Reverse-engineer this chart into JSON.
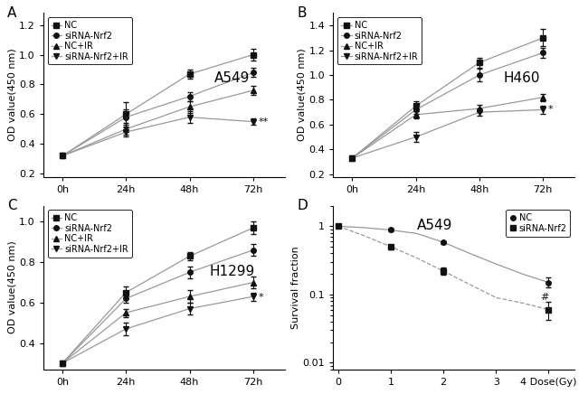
{
  "panel_A": {
    "title": "A549",
    "ylabel": "OD value(450 nm)",
    "xticks": [
      0,
      1,
      2,
      3
    ],
    "xticklabels": [
      "0h",
      "24h",
      "48h",
      "72h"
    ],
    "ylim": [
      0.18,
      1.28
    ],
    "yticks": [
      0.2,
      0.4,
      0.6,
      0.8,
      1.0,
      1.2
    ],
    "series": {
      "NC": {
        "y": [
          0.32,
          0.6,
          0.87,
          1.0
        ],
        "yerr": [
          0.01,
          0.08,
          0.03,
          0.04
        ],
        "marker": "s"
      },
      "siRNA-Nrf2": {
        "y": [
          0.32,
          0.58,
          0.72,
          0.88
        ],
        "yerr": [
          0.01,
          0.05,
          0.03,
          0.03
        ],
        "marker": "o"
      },
      "NC+IR": {
        "y": [
          0.32,
          0.5,
          0.65,
          0.76
        ],
        "yerr": [
          0.01,
          0.04,
          0.04,
          0.03
        ],
        "marker": "^"
      },
      "siRNA-Nrf2+IR": {
        "y": [
          0.32,
          0.48,
          0.58,
          0.55
        ],
        "yerr": [
          0.01,
          0.03,
          0.04,
          0.02
        ],
        "marker": "v"
      }
    },
    "annotation": "**",
    "ann_x": 3.08,
    "ann_y": 0.545
  },
  "panel_B": {
    "title": "H460",
    "ylabel": "OD value(450 nm)",
    "xticks": [
      0,
      1,
      2,
      3
    ],
    "xticklabels": [
      "0h",
      "24h",
      "48h",
      "72h"
    ],
    "ylim": [
      0.18,
      1.5
    ],
    "yticks": [
      0.2,
      0.4,
      0.6,
      0.8,
      1.0,
      1.2,
      1.4
    ],
    "series": {
      "NC": {
        "y": [
          0.33,
          0.75,
          1.1,
          1.3
        ],
        "yerr": [
          0.01,
          0.04,
          0.04,
          0.07
        ],
        "marker": "s"
      },
      "siRNA-Nrf2": {
        "y": [
          0.33,
          0.72,
          1.0,
          1.18
        ],
        "yerr": [
          0.01,
          0.03,
          0.05,
          0.04
        ],
        "marker": "o"
      },
      "NC+IR": {
        "y": [
          0.33,
          0.68,
          0.73,
          0.82
        ],
        "yerr": [
          0.01,
          0.03,
          0.03,
          0.03
        ],
        "marker": "^"
      },
      "siRNA-Nrf2+IR": {
        "y": [
          0.33,
          0.5,
          0.7,
          0.72
        ],
        "yerr": [
          0.01,
          0.04,
          0.03,
          0.03
        ],
        "marker": "v"
      }
    },
    "annotation": "*",
    "ann_x": 3.08,
    "ann_y": 0.72
  },
  "panel_C": {
    "title": "H1299",
    "ylabel": "OD value(450 nm)",
    "xticks": [
      0,
      1,
      2,
      3
    ],
    "xticklabels": [
      "0h",
      "24h",
      "48h",
      "72h"
    ],
    "ylim": [
      0.27,
      1.08
    ],
    "yticks": [
      0.4,
      0.6,
      0.8,
      1.0
    ],
    "series": {
      "NC": {
        "y": [
          0.3,
          0.65,
          0.83,
          0.97
        ],
        "yerr": [
          0.01,
          0.03,
          0.02,
          0.03
        ],
        "marker": "s"
      },
      "siRNA-Nrf2": {
        "y": [
          0.3,
          0.62,
          0.75,
          0.86
        ],
        "yerr": [
          0.01,
          0.02,
          0.03,
          0.03
        ],
        "marker": "o"
      },
      "NC+IR": {
        "y": [
          0.3,
          0.55,
          0.63,
          0.7
        ],
        "yerr": [
          0.01,
          0.02,
          0.03,
          0.03
        ],
        "marker": "^"
      },
      "siRNA-Nrf2+IR": {
        "y": [
          0.3,
          0.47,
          0.57,
          0.63
        ],
        "yerr": [
          0.01,
          0.03,
          0.03,
          0.02
        ],
        "marker": "v"
      }
    },
    "annotation": "*",
    "ann_x": 3.08,
    "ann_y": 0.625
  },
  "panel_D": {
    "title": "A549",
    "ylabel": "Survival fraction",
    "xlim": [
      -0.1,
      4.5
    ],
    "ylim_log": [
      0.008,
      2.0
    ],
    "NC": {
      "x": [
        0,
        1,
        2,
        4
      ],
      "y": [
        1.0,
        0.88,
        0.58,
        0.15
      ],
      "yerr": [
        0.0,
        0.03,
        0.03,
        0.025
      ],
      "fit_x": [
        0,
        0.5,
        1,
        1.5,
        2,
        2.5,
        3,
        3.5,
        4
      ],
      "fit_y": [
        1.0,
        0.95,
        0.88,
        0.78,
        0.58,
        0.4,
        0.28,
        0.2,
        0.15
      ],
      "linestyle": "-",
      "marker": "o"
    },
    "siRNA-Nrf2": {
      "x": [
        0,
        1,
        2,
        4
      ],
      "y": [
        1.0,
        0.5,
        0.22,
        0.06
      ],
      "yerr": [
        0.0,
        0.04,
        0.025,
        0.018
      ],
      "fit_x": [
        0,
        0.5,
        1,
        1.5,
        2,
        2.5,
        3,
        3.5,
        4
      ],
      "fit_y": [
        1.0,
        0.72,
        0.5,
        0.34,
        0.22,
        0.14,
        0.09,
        0.075,
        0.06
      ],
      "linestyle": "--",
      "marker": "s"
    },
    "annotation": "#",
    "ann_x": 3.85,
    "ann_y": 0.09
  },
  "line_color": "#999999",
  "marker_color": "#111111",
  "marker_size": 4,
  "font_size": 8,
  "title_fontsize": 11
}
